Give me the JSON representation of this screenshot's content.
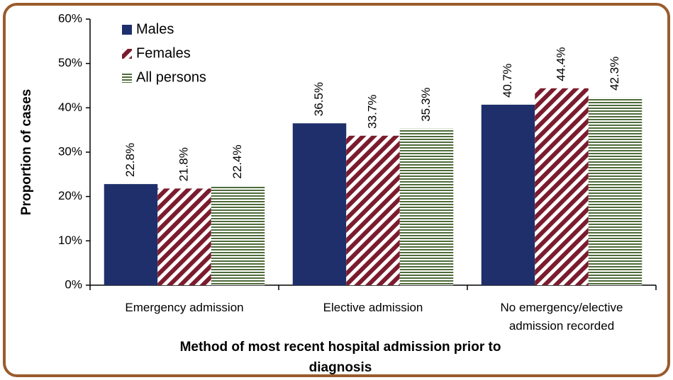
{
  "chart_data": {
    "type": "bar",
    "y_label": "Proportion of cases",
    "x_label": "Method of most recent hospital admission prior to diagnosis",
    "categories": [
      "Emergency admission",
      "Elective admission",
      "No emergency/elective admission recorded"
    ],
    "series": [
      {
        "name": "Males",
        "color": "#1f2f6b",
        "pattern": "solid",
        "values": [
          22.8,
          36.5,
          40.7
        ],
        "value_labels": [
          "22.8%",
          "36.5%",
          "40.7%"
        ]
      },
      {
        "name": "Females",
        "color": "#7b1c2e",
        "pattern": "diagonal",
        "values": [
          21.8,
          33.7,
          44.4
        ],
        "value_labels": [
          "21.8%",
          "33.7%",
          "44.4%"
        ]
      },
      {
        "name": "All persons",
        "color": "#4e6b3a",
        "pattern": "horizontal",
        "values": [
          22.4,
          35.3,
          42.3
        ],
        "value_labels": [
          "22.4%",
          "35.3%",
          "42.3%"
        ]
      }
    ],
    "ylim": [
      0,
      60
    ],
    "yticks": [
      {
        "value": 0,
        "label": "0%"
      },
      {
        "value": 10,
        "label": "10%"
      },
      {
        "value": 20,
        "label": "20%"
      },
      {
        "value": 30,
        "label": "30%"
      },
      {
        "value": 40,
        "label": "40%"
      },
      {
        "value": 50,
        "label": "50%"
      },
      {
        "value": 60,
        "label": "60%"
      }
    ],
    "grid": false,
    "legend": "top-left"
  }
}
